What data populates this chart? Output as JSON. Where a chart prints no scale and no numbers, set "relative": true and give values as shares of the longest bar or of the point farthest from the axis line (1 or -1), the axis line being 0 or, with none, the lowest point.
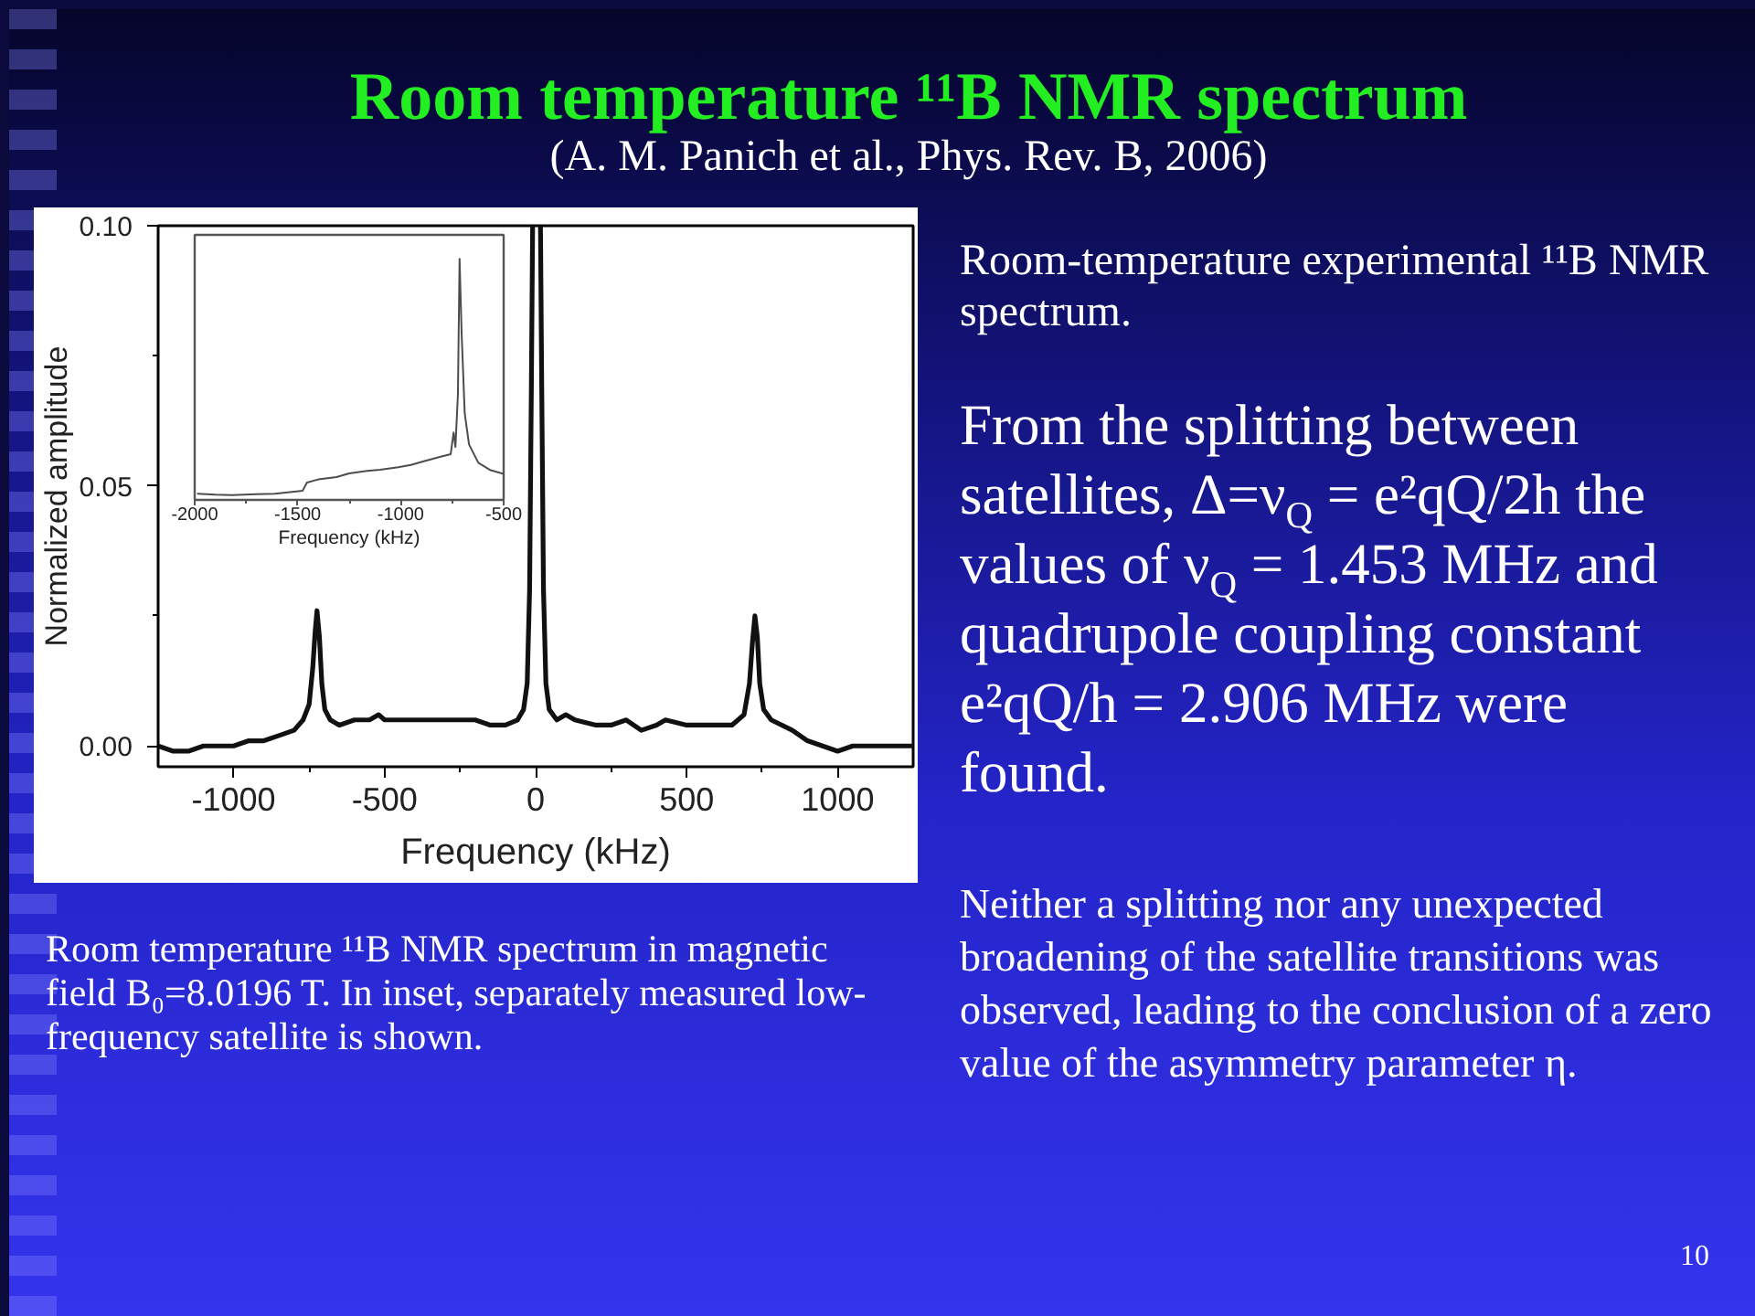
{
  "chart_data": [
    {
      "type": "line",
      "title": "Room temperature ¹¹B NMR spectrum",
      "subtitle": "(A. M. Panich et al., Phys. Rev. B, 2006)",
      "xlabel": "Frequency (kHz)",
      "ylabel": "Normalized amplitude",
      "color": "#111111",
      "x": [
        -1250,
        -1200,
        -1150,
        -1100,
        -1050,
        -1000,
        -950,
        -900,
        -850,
        -800,
        -770,
        -750,
        -738,
        -730,
        -724,
        -716,
        -708,
        -698,
        -680,
        -650,
        -600,
        -550,
        -520,
        -500,
        -450,
        -400,
        -350,
        -300,
        -250,
        -200,
        -150,
        -100,
        -60,
        -40,
        -28,
        -20,
        -14,
        -10,
        2,
        16,
        20,
        26,
        34,
        45,
        70,
        100,
        130,
        200,
        250,
        300,
        350,
        400,
        430,
        500,
        550,
        600,
        650,
        690,
        708,
        718,
        726,
        734,
        742,
        755,
        780,
        850,
        900,
        950,
        1000,
        1050,
        1100,
        1150,
        1200,
        1250
      ],
      "values": [
        0.0,
        -0.001,
        -0.001,
        0.0,
        0.0,
        0.0,
        0.001,
        0.001,
        0.002,
        0.003,
        0.005,
        0.008,
        0.015,
        0.022,
        0.026,
        0.021,
        0.012,
        0.007,
        0.005,
        0.004,
        0.005,
        0.005,
        0.006,
        0.005,
        0.005,
        0.005,
        0.005,
        0.005,
        0.005,
        0.005,
        0.004,
        0.004,
        0.005,
        0.007,
        0.012,
        0.03,
        0.07,
        0.1,
        null,
        0.1,
        0.07,
        0.03,
        0.012,
        0.007,
        0.005,
        0.006,
        0.005,
        0.004,
        0.004,
        0.005,
        0.003,
        0.004,
        0.005,
        0.004,
        0.004,
        0.004,
        0.004,
        0.006,
        0.012,
        0.02,
        0.025,
        0.021,
        0.012,
        0.007,
        0.005,
        0.003,
        0.001,
        0.0,
        -0.001,
        0.0,
        0.0,
        0.0,
        0.0,
        0.0
      ],
      "xlim": [
        -1250,
        1250
      ],
      "xticks": [
        -1000,
        -500,
        0,
        500,
        1000,
        {
          "value": -750,
          "label": null
        },
        {
          "value": -250,
          "label": null
        },
        {
          "value": 250,
          "label": null
        },
        {
          "value": 750,
          "label": null
        }
      ],
      "ylim": [
        -0.004,
        0.1
      ],
      "yticks": [
        {
          "value": 0,
          "label": "0.00"
        },
        {
          "value": 0.05,
          "label": "0.05"
        },
        {
          "value": 0.1,
          "label": "0.10"
        },
        {
          "value": 0.025,
          "label": null
        },
        {
          "value": 0.075,
          "label": null
        }
      ],
      "annotations": [
        "Room temperature ¹¹B NMR spectrum in magnetic field B₀=8.0196 T. In inset, separately measured low-frequency satellite is shown.",
        "Room-temperature experimental ¹¹B NMR spectrum.",
        "From the splitting between satellites, Δ=ν$_{Q}$ = e²qQ/2h the values of ν$_{Q}$ = 1.453 MHz and quadrupole coupling constant e²qQ/h = 2.906 MHz were found.",
        "Neither a splitting nor any unexpected broadening of the satellite transitions was observed, leading to the conclusion of a zero value of the asymmetry parameter η.",
        "10"
      ]
    },
    {
      "type": "line",
      "relative": true,
      "xlabel": "Frequency (kHz)",
      "color": "#4d4d4d",
      "x": [
        -1985,
        -1900,
        -1820,
        -1700,
        -1610,
        -1476,
        -1455,
        -1400,
        -1311,
        -1250,
        -1162,
        -1100,
        -1012,
        -950,
        -892,
        -802,
        -757,
        -743,
        -734,
        -722,
        -714,
        -704,
        -689,
        -668,
        -623,
        -563,
        -500
      ],
      "values": [
        0.026,
        0.022,
        0.02,
        0.024,
        0.026,
        0.038,
        0.072,
        0.085,
        0.095,
        0.11,
        0.12,
        0.125,
        0.136,
        0.145,
        0.159,
        0.18,
        0.19,
        0.28,
        0.22,
        0.44,
        1.0,
        0.69,
        0.36,
        0.23,
        0.154,
        0.123,
        0.108
      ],
      "xlim": [
        -2000,
        -500
      ],
      "xticks": [
        -2000,
        -1500,
        -1000,
        -500,
        {
          "value": -1750,
          "label": null
        },
        {
          "value": -1250,
          "label": null
        },
        {
          "value": -750,
          "label": null
        }
      ],
      "tick_labels": "x"
    }
  ]
}
